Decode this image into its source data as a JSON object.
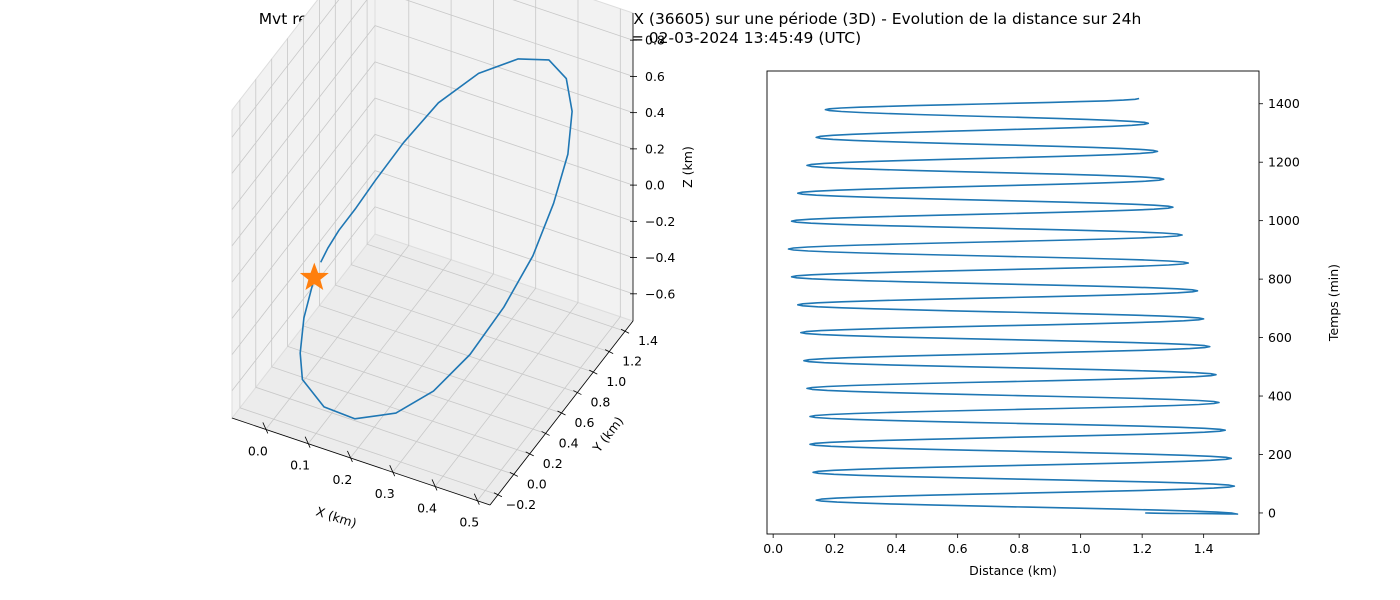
{
  "figure": {
    "title": "Mvt relatif de TERRA SAR X (31698) vs TANDEM X (36605) sur une période (3D) - Evolution de la distance sur 24h",
    "subtitle": "Date début = 02-03-2024 13:45:49 (UTC)",
    "colors": {
      "series": "#1f77b4",
      "marker": "#ff7f0e",
      "pane": "#f2f2f2",
      "grid": "#c8c8c8"
    }
  },
  "chart_data": [
    {
      "type": "line3d",
      "title": "",
      "xlabel": "X (km)",
      "ylabel": "Y (km)",
      "zlabel": "Z (km)",
      "xlim": [
        -0.08,
        0.53
      ],
      "ylim": [
        -0.3,
        1.5
      ],
      "zlim": [
        -0.75,
        0.95
      ],
      "xticks": [
        "0.0",
        "0.1",
        "0.2",
        "0.3",
        "0.4",
        "0.5"
      ],
      "yticks": [
        "−0.2",
        "0.0",
        "0.2",
        "0.4",
        "0.6",
        "0.8",
        "1.0",
        "1.2",
        "1.4"
      ],
      "zticks": [
        "−0.6",
        "−0.4",
        "−0.2",
        "0.0",
        "0.2",
        "0.4",
        "0.6",
        "0.8"
      ],
      "grid": true,
      "series": [
        {
          "points": [
            [
              0.002,
              0.3,
              -0.25
            ],
            [
              -0.004,
              0.2,
              -0.42
            ],
            [
              0.006,
              0.1,
              -0.55
            ],
            [
              0.03,
              0.0,
              -0.62
            ],
            [
              0.1,
              -0.1,
              -0.66
            ],
            [
              0.18,
              -0.14,
              -0.64
            ],
            [
              0.27,
              -0.1,
              -0.56
            ],
            [
              0.34,
              0.0,
              -0.44
            ],
            [
              0.4,
              0.14,
              -0.27
            ],
            [
              0.45,
              0.3,
              -0.06
            ],
            [
              0.485,
              0.48,
              0.15
            ],
            [
              0.5,
              0.66,
              0.35
            ],
            [
              0.5,
              0.84,
              0.52
            ],
            [
              0.48,
              1.0,
              0.65
            ],
            [
              0.44,
              1.14,
              0.72
            ],
            [
              0.38,
              1.24,
              0.72
            ],
            [
              0.3,
              1.28,
              0.64
            ],
            [
              0.21,
              1.26,
              0.5
            ],
            [
              0.13,
              1.18,
              0.32
            ],
            [
              0.07,
              1.06,
              0.12
            ],
            [
              0.03,
              0.92,
              -0.04
            ],
            [
              0.01,
              0.78,
              -0.13
            ],
            [
              0.0,
              0.62,
              -0.17
            ],
            [
              0.0,
              0.48,
              -0.19
            ],
            [
              0.002,
              0.38,
              -0.21
            ]
          ]
        }
      ],
      "marker": {
        "shape": "star",
        "point": [
          0.002,
          0.3,
          -0.25
        ]
      }
    },
    {
      "type": "line",
      "title": "",
      "xlabel": "Distance (km)",
      "ylabel": "Temps (min)",
      "xlim": [
        -0.02,
        1.58
      ],
      "ylim": [
        -72,
        1512
      ],
      "xticks": [
        0.0,
        0.2,
        0.4,
        0.6,
        0.8,
        1.0,
        1.2,
        1.4
      ],
      "yticks": [
        0,
        200,
        400,
        600,
        800,
        1000,
        1200,
        1400
      ],
      "grid": false,
      "period_min": 95.4,
      "extrema": [
        [
          1.21,
          0.0
        ],
        [
          1.51,
          -4
        ],
        [
          0.14,
          44
        ],
        [
          1.5,
          92
        ],
        [
          0.13,
          139
        ],
        [
          1.49,
          187
        ],
        [
          0.12,
          235
        ],
        [
          1.47,
          283
        ],
        [
          0.12,
          330
        ],
        [
          1.45,
          378
        ],
        [
          0.11,
          426
        ],
        [
          1.44,
          473
        ],
        [
          0.1,
          521
        ],
        [
          1.42,
          569
        ],
        [
          0.09,
          617
        ],
        [
          1.4,
          664
        ],
        [
          0.08,
          712
        ],
        [
          1.38,
          760
        ],
        [
          0.06,
          808
        ],
        [
          1.35,
          855
        ],
        [
          0.05,
          903
        ],
        [
          1.33,
          951
        ],
        [
          0.06,
          998
        ],
        [
          1.3,
          1046
        ],
        [
          0.08,
          1094
        ],
        [
          1.27,
          1142
        ],
        [
          0.11,
          1189
        ],
        [
          1.25,
          1237
        ],
        [
          0.14,
          1285
        ],
        [
          1.22,
          1333
        ],
        [
          0.17,
          1380
        ],
        [
          1.19,
          1418
        ]
      ]
    }
  ]
}
